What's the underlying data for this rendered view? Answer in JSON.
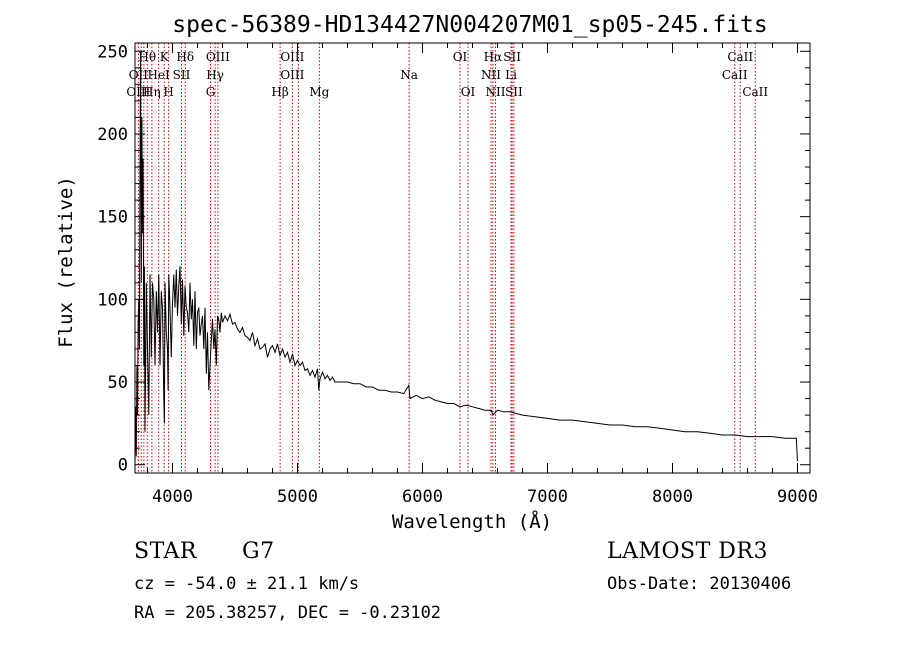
{
  "chart_data": {
    "type": "line",
    "title": "spec-56389-HD134427N004207M01_sp05-245.fits",
    "xlabel": "Wavelength (Å)",
    "ylabel": "Flux (relative)",
    "xlim": [
      3700,
      9100
    ],
    "ylim": [
      -5,
      255
    ],
    "xticks": [
      4000,
      5000,
      6000,
      7000,
      8000,
      9000
    ],
    "yticks": [
      0,
      50,
      100,
      150,
      200,
      250
    ],
    "series": [
      {
        "name": "flux",
        "x": [
          3700,
          3705,
          3710,
          3715,
          3720,
          3725,
          3730,
          3735,
          3740,
          3745,
          3750,
          3755,
          3760,
          3765,
          3770,
          3775,
          3780,
          3790,
          3800,
          3810,
          3820,
          3830,
          3840,
          3850,
          3860,
          3870,
          3880,
          3890,
          3900,
          3910,
          3920,
          3930,
          3935,
          3940,
          3950,
          3960,
          3965,
          3970,
          3980,
          3990,
          4000,
          4010,
          4020,
          4030,
          4040,
          4050,
          4060,
          4070,
          4080,
          4090,
          4100,
          4110,
          4120,
          4130,
          4140,
          4150,
          4160,
          4170,
          4180,
          4190,
          4200,
          4210,
          4220,
          4230,
          4240,
          4250,
          4260,
          4270,
          4280,
          4290,
          4300,
          4310,
          4320,
          4330,
          4340,
          4350,
          4360,
          4370,
          4380,
          4390,
          4400,
          4420,
          4440,
          4460,
          4480,
          4500,
          4520,
          4540,
          4560,
          4580,
          4600,
          4620,
          4640,
          4660,
          4680,
          4700,
          4720,
          4740,
          4760,
          4780,
          4800,
          4820,
          4840,
          4860,
          4880,
          4900,
          4920,
          4940,
          4960,
          4980,
          5000,
          5020,
          5040,
          5060,
          5080,
          5100,
          5120,
          5140,
          5160,
          5170,
          5180,
          5200,
          5220,
          5240,
          5260,
          5280,
          5300,
          5350,
          5400,
          5450,
          5500,
          5550,
          5600,
          5650,
          5700,
          5750,
          5800,
          5850,
          5890,
          5900,
          5950,
          6000,
          6050,
          6100,
          6150,
          6200,
          6250,
          6300,
          6350,
          6400,
          6450,
          6500,
          6550,
          6563,
          6600,
          6650,
          6700,
          6750,
          6800,
          6900,
          7000,
          7100,
          7200,
          7300,
          7400,
          7500,
          7600,
          7700,
          7800,
          7900,
          8000,
          8100,
          8200,
          8300,
          8400,
          8500,
          8600,
          8700,
          8800,
          8900,
          8950,
          8990,
          9000
        ],
        "values": [
          0,
          35,
          5,
          60,
          30,
          85,
          100,
          70,
          180,
          250,
          110,
          210,
          140,
          185,
          60,
          120,
          20,
          110,
          70,
          30,
          115,
          65,
          110,
          100,
          60,
          105,
          80,
          115,
          60,
          105,
          95,
          40,
          25,
          110,
          80,
          70,
          45,
          115,
          95,
          65,
          98,
          115,
          95,
          118,
          90,
          108,
          120,
          85,
          112,
          78,
          108,
          95,
          92,
          80,
          110,
          88,
          100,
          72,
          105,
          70,
          92,
          95,
          78,
          85,
          90,
          70,
          95,
          55,
          80,
          45,
          60,
          75,
          88,
          70,
          82,
          60,
          90,
          88,
          80,
          92,
          86,
          90,
          87,
          91,
          85,
          86,
          82,
          80,
          83,
          78,
          77,
          75,
          80,
          72,
          76,
          70,
          71,
          73,
          65,
          70,
          72,
          68,
          73,
          66,
          70,
          65,
          68,
          62,
          67,
          60,
          63,
          60,
          62,
          57,
          58,
          54,
          57,
          53,
          58,
          45,
          52,
          56,
          52,
          54,
          51,
          53,
          50,
          50,
          50,
          49,
          49,
          47,
          47,
          45,
          45,
          44,
          44,
          43,
          48,
          40,
          42,
          40,
          41,
          39,
          38,
          37,
          37,
          35,
          36,
          35,
          34,
          33,
          33,
          30,
          33,
          32,
          32,
          31,
          30,
          29,
          28,
          27,
          27,
          26,
          25,
          24,
          24,
          23,
          23,
          22,
          21,
          20,
          20,
          19,
          18,
          18,
          17,
          17,
          17,
          16,
          16,
          16,
          2
        ]
      }
    ],
    "line_markers": [
      {
        "label": "Hθ",
        "x": 3798,
        "row": 1
      },
      {
        "label": "K",
        "x": 3934,
        "row": 1
      },
      {
        "label": "Hδ",
        "x": 4102,
        "row": 1
      },
      {
        "label": "OIII",
        "x": 4363,
        "row": 1
      },
      {
        "label": "OIII",
        "x": 4959,
        "row": 1
      },
      {
        "label": "OI",
        "x": 6300,
        "row": 1
      },
      {
        "label": "Hα",
        "x": 6563,
        "row": 1
      },
      {
        "label": "SII",
        "x": 6717,
        "row": 1
      },
      {
        "label": "CaII",
        "x": 8542,
        "row": 1
      },
      {
        "label": "OII",
        "x": 3727,
        "row": 2
      },
      {
        "label": "HeI",
        "x": 3889,
        "row": 2
      },
      {
        "label": "SII",
        "x": 4072,
        "row": 2
      },
      {
        "label": "Hγ",
        "x": 4341,
        "row": 2
      },
      {
        "label": "OIII",
        "x": 4959,
        "row": 2
      },
      {
        "label": "Na",
        "x": 5893,
        "row": 2
      },
      {
        "label": "NII",
        "x": 6548,
        "row": 2
      },
      {
        "label": "Li",
        "x": 6708,
        "row": 2
      },
      {
        "label": "CaII",
        "x": 8498,
        "row": 2
      },
      {
        "label": "OIII",
        "x": 3727,
        "row": 3
      },
      {
        "label": "Hη",
        "x": 3835,
        "row": 3
      },
      {
        "label": "H",
        "x": 3969,
        "row": 3
      },
      {
        "label": "G",
        "x": 4304,
        "row": 3
      },
      {
        "label": "Hβ",
        "x": 4861,
        "row": 3
      },
      {
        "label": "Mg",
        "x": 5175,
        "row": 3
      },
      {
        "label": "OI",
        "x": 6364,
        "row": 3
      },
      {
        "label": "NII",
        "x": 6584,
        "row": 3
      },
      {
        "label": "SII",
        "x": 6731,
        "row": 3
      },
      {
        "label": "CaII",
        "x": 8662,
        "row": 3
      }
    ],
    "marker_lines_x": [
      3727,
      3750,
      3771,
      3798,
      3835,
      3889,
      3934,
      3969,
      4072,
      4102,
      4304,
      4341,
      4363,
      4861,
      4959,
      5007,
      5175,
      5893,
      6300,
      6364,
      6548,
      6563,
      6584,
      6708,
      6717,
      6731,
      8498,
      8542,
      8662
    ]
  },
  "info": {
    "object_class": "STAR",
    "subclass": "G7",
    "survey": "LAMOST DR3",
    "cz": "cz = -54.0 ± 21.1 km/s",
    "obs_date": "Obs-Date: 20130406",
    "coords": "RA = 205.38257, DEC =  -0.23102"
  },
  "colors": {
    "axis": "#000000",
    "marker_line": "#cc0000",
    "spectrum": "#000000"
  }
}
